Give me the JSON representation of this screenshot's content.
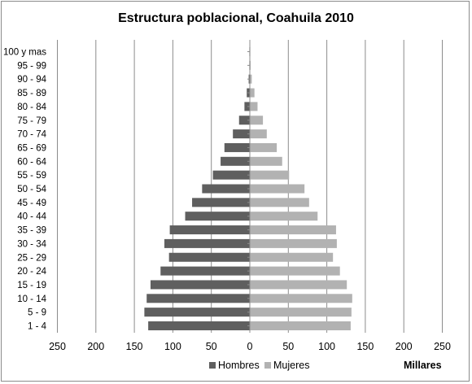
{
  "chart_data": {
    "type": "bar",
    "orientation": "horizontal",
    "layout": "population-pyramid",
    "title": "Estructura poblacional, Coahuila 2010",
    "unit_label": "Millares",
    "categories": [
      "1 - 4",
      "5 - 9",
      "10 - 14",
      "15 - 19",
      "20 - 24",
      "25 - 29",
      "30 - 34",
      "35 - 39",
      "40 - 44",
      "45 - 49",
      "50 - 54",
      "55 - 59",
      "60 - 64",
      "65 - 69",
      "70 - 74",
      "75 - 79",
      "80 - 84",
      "85 - 89",
      "90 - 94",
      "95 - 99",
      "100 y mas"
    ],
    "series": [
      {
        "name": "Hombres",
        "side": "left",
        "color": "#5f5f5f",
        "values": [
          132,
          137,
          134,
          129,
          116,
          105,
          111,
          104,
          84,
          75,
          62,
          48,
          38,
          33,
          22,
          14,
          7,
          4,
          1.5,
          0.6,
          0.2
        ]
      },
      {
        "name": "Mujeres",
        "side": "right",
        "color": "#b2b2b2",
        "values": [
          131,
          132,
          133,
          126,
          117,
          108,
          113,
          112,
          88,
          77,
          71,
          51,
          42,
          35,
          22,
          17,
          10,
          6,
          2.5,
          1,
          0.3
        ]
      }
    ],
    "xlim": [
      -250,
      250
    ],
    "x_ticks": [
      -250,
      -200,
      -150,
      -100,
      -50,
      0,
      50,
      100,
      150,
      200,
      250
    ],
    "x_tick_labels": [
      "250",
      "200",
      "150",
      "100",
      "50",
      "0",
      "50",
      "100",
      "150",
      "200",
      "250"
    ],
    "grid": "vertical",
    "gridline_color": "#8c8c8c",
    "legend_position": "bottom"
  }
}
